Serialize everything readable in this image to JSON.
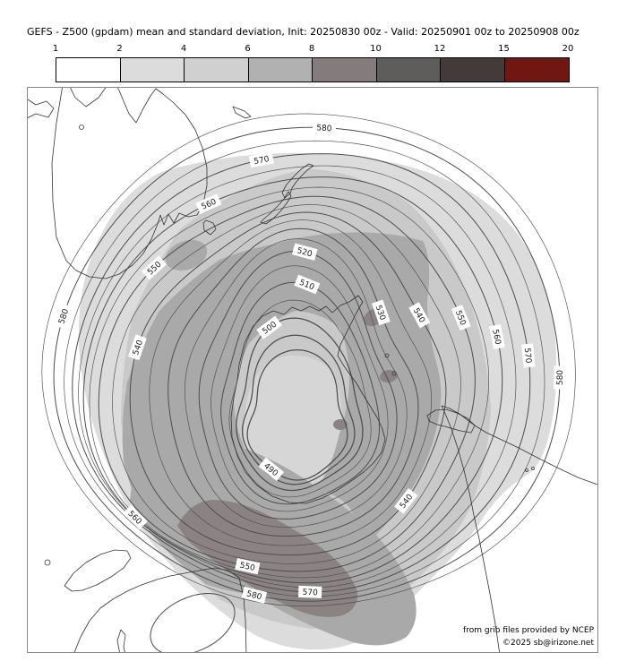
{
  "title": "GEFS - Z500 (gpdam) mean and standard deviation, Init: 20250830 00z - Valid: 20250901 00z to 20250908 00z",
  "colorbar": {
    "ticks": [
      "1",
      "2",
      "4",
      "6",
      "8",
      "10",
      "12",
      "15",
      "20"
    ],
    "colors": [
      "#ffffff",
      "#dcdcdc",
      "#d0d0d0",
      "#b1b1b1",
      "#847c7c",
      "#5f5c5c",
      "#453a3a",
      "#701712"
    ]
  },
  "map": {
    "attribution1": "from grib files provided by NCEP",
    "attribution2": "©2025 sb@irizone.net",
    "shade_colors": {
      "s24": "#dcdcdc",
      "s46": "#c9c9c9",
      "s68": "#a9a9a9",
      "s810": "#8b8383",
      "inner": "#d6d6d6"
    },
    "contours": {
      "min": 490,
      "max": 585,
      "interval": 5
    },
    "labeled_levels": [
      490,
      500,
      510,
      520,
      530,
      540,
      550,
      560,
      570,
      580
    ],
    "label_angles": {
      "490": [
        118
      ],
      "500": [
        251
      ],
      "510": [
        273
      ],
      "520": [
        271
      ],
      "530": [
        313
      ],
      "540": [
        327,
        194,
        48
      ],
      "550": [
        337,
        217,
        108
      ],
      "560": [
        240,
        348,
        141
      ],
      "570": [
        257,
        356,
        90
      ],
      "580": [
        273,
        191,
        3,
        104
      ]
    },
    "regions": [
      "Australia",
      "Tasmania",
      "New Zealand",
      "Antarctica",
      "South America",
      "Tierra del Fuego",
      "Africa",
      "Madagascar"
    ]
  },
  "chart_data": {
    "type": "contour-map",
    "title": "GEFS - Z500 (gpdam) mean and standard deviation",
    "init": "20250830 00z",
    "valid": "20250901 00z to 20250908 00z",
    "projection": "south polar stereographic",
    "mean_contours_gpdam": [
      490,
      495,
      500,
      505,
      510,
      515,
      520,
      525,
      530,
      535,
      540,
      545,
      550,
      555,
      560,
      565,
      570,
      575,
      580,
      585
    ],
    "low_center_gpdam": 490,
    "high_edge_gpdam": 585,
    "stddev_scale_gpdam": [
      1,
      2,
      4,
      6,
      8,
      10,
      12,
      15,
      20
    ],
    "stddev_max_region": "southwest of Antarctica (8-10 gpdam core)",
    "source": "from grib files provided by NCEP"
  }
}
